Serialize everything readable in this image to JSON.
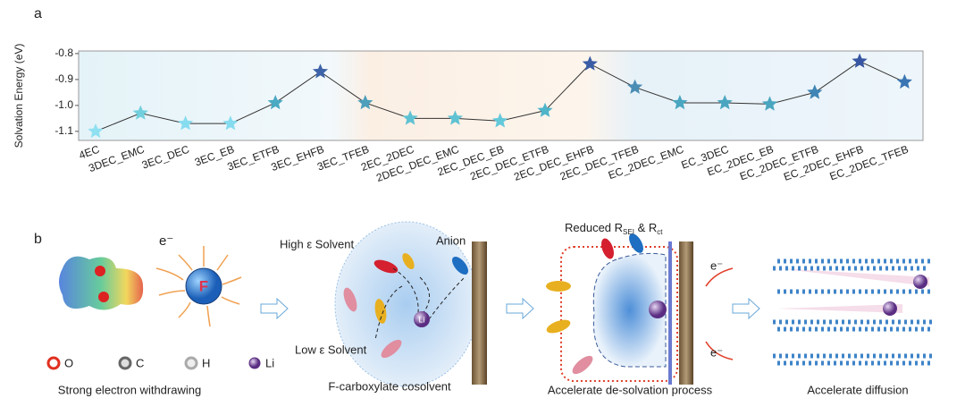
{
  "chart_data": {
    "type": "line",
    "panel_label": "a",
    "y_label": "Solvation Energy (eV)",
    "categories": [
      "4EC",
      "3DEC_EMC",
      "3EC_DEC",
      "3EC_EB",
      "3EC_ETFB",
      "3EC_EHFB",
      "3EC_TFEB",
      "2EC_2DEC",
      "2DEC_DEC_EMC",
      "2EC_DEC_EB",
      "2EC_DEC_ETFB",
      "2EC_DEC_EHFB",
      "2EC_DEC_TFEB",
      "EC_2DEC_EMC",
      "EC_3DEC",
      "EC_2DEC_EB",
      "EC_2DEC_ETFB",
      "EC_2DEC_EHFB",
      "EC_2DEC_TFEB"
    ],
    "values": [
      -1.1,
      -1.03,
      -1.07,
      -1.07,
      -0.99,
      -0.87,
      -0.99,
      -1.05,
      -1.05,
      -1.06,
      -1.02,
      -0.84,
      -0.93,
      -0.99,
      -0.99,
      -0.995,
      -0.95,
      -0.83,
      -0.91
    ],
    "colors": [
      "#8fe0f0",
      "#72d0de",
      "#86dcef",
      "#86dcef",
      "#4aa9c3",
      "#3d63a8",
      "#4d9fbb",
      "#5fc2d3",
      "#5fc2d3",
      "#63c8da",
      "#4fb5cb",
      "#3a5ca5",
      "#4a8db5",
      "#4aa6c0",
      "#4aa6c0",
      "#4aa6c0",
      "#3f85b5",
      "#3656a2",
      "#3a75b3"
    ],
    "line_color": "#333333",
    "ylim": [
      -1.135,
      -0.79
    ],
    "yticks": [
      -0.8,
      -0.9,
      {
        "value": -1,
        "label": "-1.0"
      },
      -1.1
    ]
  },
  "panel_b": {
    "panel_label": "b",
    "electron": "e⁻",
    "fluorine": "F",
    "atoms": [
      "O",
      "C",
      "H",
      "Li"
    ],
    "caption_1": "Strong electron withdrawing",
    "high_solvent": "High ε Solvent",
    "anion": "Anion",
    "low_solvent": "Low ε Solvent",
    "li_label": "Li",
    "caption_2": "F-carboxylate cosolvent",
    "reduced": [
      "Reduced R",
      "SEI",
      " & R",
      "ct"
    ],
    "caption_3": "Accelerate de-solvation process",
    "caption_4": "Accelerate diffusion"
  }
}
